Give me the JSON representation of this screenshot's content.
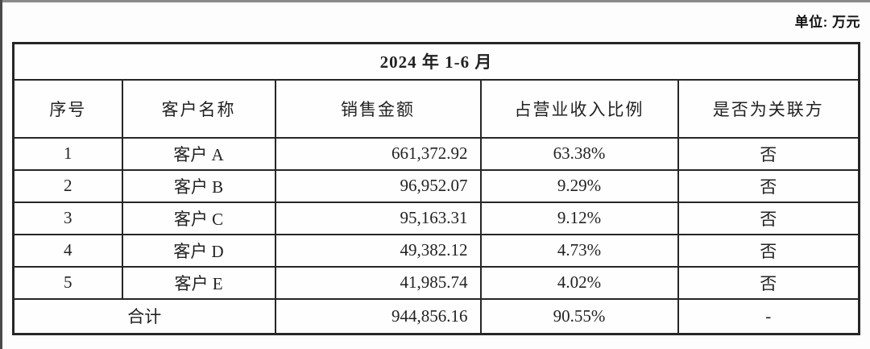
{
  "unit_label": "单位: 万元",
  "table": {
    "title": "2024 年 1-6 月",
    "columns": [
      "序号",
      "客户名称",
      "销售金额",
      "占营业收入比例",
      "是否为关联方"
    ],
    "rows": [
      {
        "no": "1",
        "customer": "客户 A",
        "amount": "661,372.92",
        "ratio": "63.38%",
        "related": "否"
      },
      {
        "no": "2",
        "customer": "客户 B",
        "amount": "96,952.07",
        "ratio": "9.29%",
        "related": "否"
      },
      {
        "no": "3",
        "customer": "客户 C",
        "amount": "95,163.31",
        "ratio": "9.12%",
        "related": "否"
      },
      {
        "no": "4",
        "customer": "客户 D",
        "amount": "49,382.12",
        "ratio": "4.73%",
        "related": "否"
      },
      {
        "no": "5",
        "customer": "客户 E",
        "amount": "41,985.74",
        "ratio": "4.02%",
        "related": "否"
      }
    ],
    "total": {
      "label": "合计",
      "amount": "944,856.16",
      "ratio": "90.55%",
      "related": "-"
    }
  }
}
